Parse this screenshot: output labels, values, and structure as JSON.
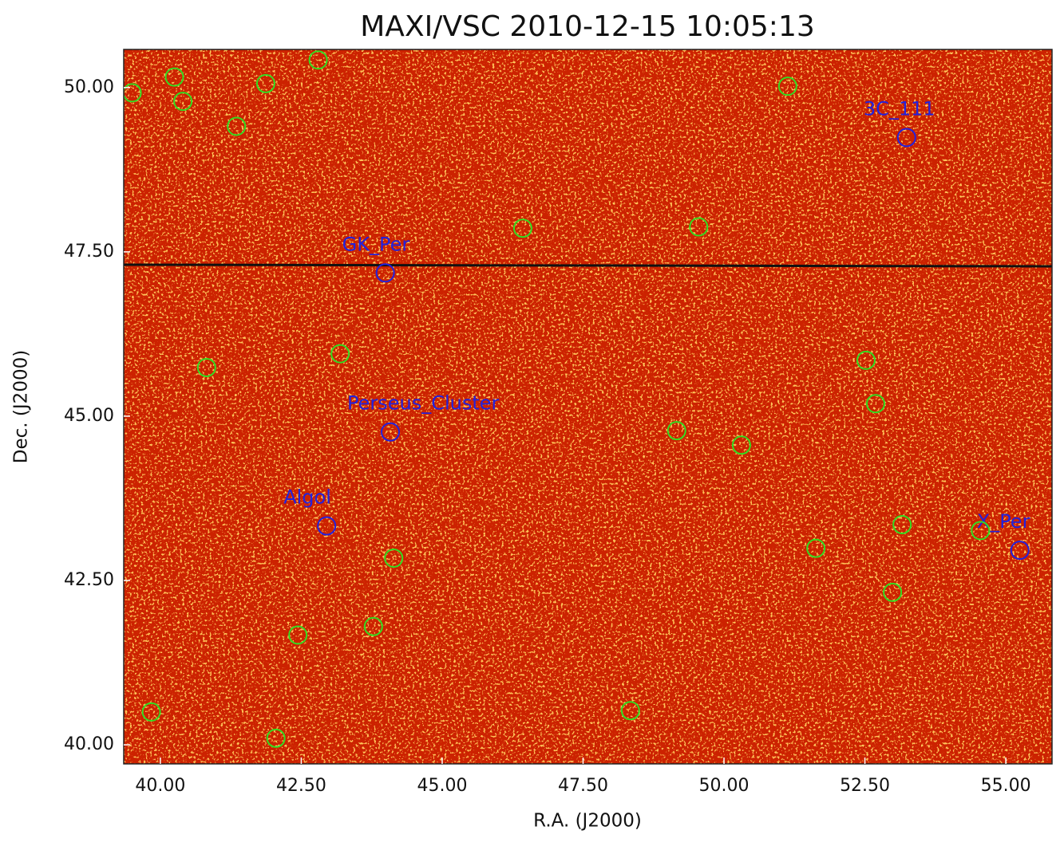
{
  "chart_data": {
    "type": "sky-image",
    "title": "MAXI/VSC 2010-12-15 10:05:13",
    "x_label": "R.A. (J2000)",
    "y_label": "Dec. (J2000)",
    "xlim": [
      39.35,
      55.82
    ],
    "ylim": [
      39.71,
      50.58
    ],
    "xticks": [
      {
        "value": 40,
        "label": "40.00"
      },
      {
        "value": 42.5,
        "label": "42.50"
      },
      {
        "value": 45,
        "label": "45.00"
      },
      {
        "value": 47.5,
        "label": "47.50"
      },
      {
        "value": 50,
        "label": "50.00"
      },
      {
        "value": 52.5,
        "label": "52.50"
      },
      {
        "value": 55,
        "label": "55.00"
      }
    ],
    "yticks": [
      {
        "value": 40,
        "label": "40.00"
      },
      {
        "value": 42.5,
        "label": "42.50"
      },
      {
        "value": 45,
        "label": "45.00"
      },
      {
        "value": 47.5,
        "label": "47.50"
      },
      {
        "value": 50,
        "label": "50.00"
      }
    ],
    "image_color": "#cc2200",
    "series": [
      {
        "color": "#2222dd",
        "labels": [
          "3C_111",
          "GK_Per",
          "Perseus_Cluster",
          "Algol",
          "X_Per"
        ],
        "x": [
          53.24,
          43.99,
          44.08,
          42.95,
          55.25
        ],
        "values": [
          49.24,
          47.18,
          44.76,
          43.33,
          42.96
        ]
      },
      {
        "color": "#33dd22",
        "x": [
          39.5,
          40.25,
          40.4,
          41.87,
          42.8,
          41.35,
          51.13,
          46.43,
          49.55,
          43.19,
          40.82,
          52.52,
          52.69,
          49.16,
          50.31,
          53.16,
          54.55,
          51.63,
          44.14,
          52.99,
          42.44,
          43.78,
          39.84,
          48.34,
          42.05
        ],
        "values": [
          49.92,
          50.16,
          49.79,
          50.06,
          50.42,
          49.41,
          50.02,
          47.86,
          47.88,
          45.95,
          45.74,
          45.85,
          45.19,
          44.78,
          44.56,
          43.35,
          43.26,
          42.99,
          42.84,
          42.32,
          41.67,
          41.8,
          40.5,
          40.52,
          40.1
        ]
      }
    ]
  }
}
